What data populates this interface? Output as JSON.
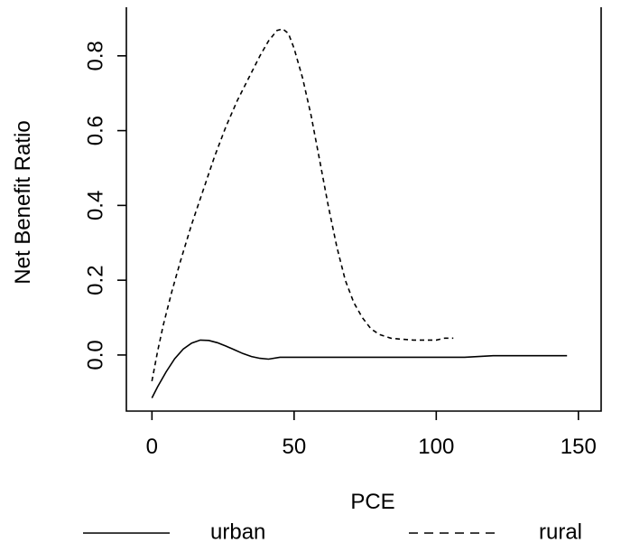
{
  "chart_data": {
    "type": "line",
    "title": "",
    "xlabel": "PCE",
    "ylabel": "Net Benefit Ratio",
    "xlim": [
      -9,
      158
    ],
    "ylim": [
      -0.15,
      0.93
    ],
    "x_ticks": [
      {
        "value": 0,
        "label": "0"
      },
      {
        "value": 50,
        "label": "50"
      },
      {
        "value": 100,
        "label": "100"
      },
      {
        "value": 150,
        "label": "150"
      }
    ],
    "y_ticks": [
      {
        "value": 0.0,
        "label": "0.0"
      },
      {
        "value": 0.2,
        "label": "0.2"
      },
      {
        "value": 0.4,
        "label": "0.4"
      },
      {
        "value": 0.6,
        "label": "0.6"
      },
      {
        "value": 0.8,
        "label": "0.8"
      }
    ],
    "grid": false,
    "legend_position": "bottom",
    "series": [
      {
        "name": "urban",
        "line_style": "solid",
        "color": "#000000",
        "x": [
          0,
          2,
          5,
          8,
          11,
          14,
          17,
          20,
          23,
          26,
          29,
          32,
          35,
          38,
          41,
          45,
          50,
          60,
          80,
          100,
          110,
          120,
          130,
          140,
          146
        ],
        "y": [
          -0.115,
          -0.085,
          -0.045,
          -0.01,
          0.016,
          0.032,
          0.04,
          0.039,
          0.033,
          0.024,
          0.014,
          0.004,
          -0.004,
          -0.009,
          -0.011,
          -0.006,
          -0.006,
          -0.006,
          -0.006,
          -0.006,
          -0.006,
          -0.002,
          -0.002,
          -0.002,
          -0.002
        ]
      },
      {
        "name": "rural",
        "line_style": "dashed",
        "color": "#000000",
        "x": [
          0,
          2,
          4,
          7,
          10,
          14,
          18,
          22,
          26,
          30,
          34,
          38,
          41,
          44,
          46,
          48,
          50,
          53,
          56,
          59,
          62,
          65,
          68,
          71,
          74,
          77,
          80,
          84,
          88,
          92,
          96,
          100,
          103,
          106
        ],
        "y": [
          -0.07,
          0.01,
          0.08,
          0.17,
          0.25,
          0.35,
          0.44,
          0.53,
          0.61,
          0.68,
          0.74,
          0.8,
          0.84,
          0.868,
          0.872,
          0.86,
          0.82,
          0.74,
          0.64,
          0.52,
          0.4,
          0.29,
          0.2,
          0.14,
          0.1,
          0.07,
          0.055,
          0.045,
          0.042,
          0.04,
          0.04,
          0.04,
          0.045,
          0.045
        ]
      }
    ]
  }
}
